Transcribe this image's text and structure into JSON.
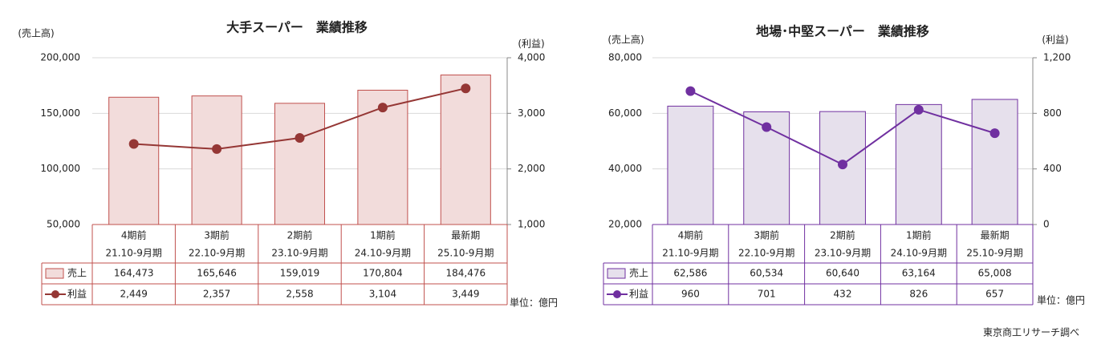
{
  "chart_data": [
    {
      "type": "bar_line",
      "title": "大手スーパー　業績推移",
      "ylabel": "(売上高)",
      "y2label": "(利益)",
      "categories": [
        "4期前",
        "3期前",
        "2期前",
        "1期前",
        "最新期"
      ],
      "periods": [
        "21.10-9月期",
        "22.10-9月期",
        "23.10-9月期",
        "24.10-9月期",
        "25.10-9月期"
      ],
      "series": [
        {
          "name": "売上",
          "type": "bar",
          "color": "#f2dcdb",
          "edgecolor": "#c0504d",
          "values": [
            164473,
            165646,
            159019,
            170804,
            184476
          ],
          "value_labels": [
            "164,473",
            "165,646",
            "159,019",
            "170,804",
            "184,476"
          ]
        },
        {
          "name": "利益",
          "type": "line",
          "axis": "y2",
          "color": "#953735",
          "values": [
            2449,
            2357,
            2558,
            3104,
            3449
          ],
          "value_labels": [
            "2,449",
            "2,357",
            "2,558",
            "3,104",
            "3,449"
          ]
        }
      ],
      "ylim": [
        50000,
        200000
      ],
      "yticks": [
        {
          "value": 50000,
          "label": "50,000"
        },
        {
          "value": 100000,
          "label": "100,000"
        },
        {
          "value": 150000,
          "label": "150,000"
        },
        {
          "value": 200000,
          "label": "200,000"
        }
      ],
      "y2lim": [
        1000,
        4000
      ],
      "y2ticks": [
        {
          "value": 1000,
          "label": "1,000"
        },
        {
          "value": 2000,
          "label": "2,000"
        },
        {
          "value": 3000,
          "label": "3,000"
        },
        {
          "value": 4000,
          "label": "4,000"
        }
      ],
      "grid": true,
      "unit": "単位：億円"
    },
    {
      "type": "bar_line",
      "title": "地場･中堅スーパー　業績推移",
      "ylabel": "(売上高)",
      "y2label": "(利益)",
      "categories": [
        "4期前",
        "3期前",
        "2期前",
        "1期前",
        "最新期"
      ],
      "periods": [
        "21.10-9月期",
        "22.10-9月期",
        "23.10-9月期",
        "24.10-9月期",
        "25.10-9月期"
      ],
      "series": [
        {
          "name": "売上",
          "type": "bar",
          "color": "#e6e0ec",
          "edgecolor": "#7030a0",
          "values": [
            62586,
            60534,
            60640,
            63164,
            65008
          ],
          "value_labels": [
            "62,586",
            "60,534",
            "60,640",
            "63,164",
            "65,008"
          ]
        },
        {
          "name": "利益",
          "type": "line",
          "axis": "y2",
          "color": "#7030a0",
          "values": [
            960,
            701,
            432,
            826,
            657
          ]
        }
      ],
      "ylim": [
        20000,
        80000
      ],
      "yticks": [
        {
          "value": 20000,
          "label": "20,000"
        },
        {
          "value": 40000,
          "label": "40,000"
        },
        {
          "value": 60000,
          "label": "60,000"
        },
        {
          "value": 80000,
          "label": "80,000"
        }
      ],
      "y2lim": [
        0,
        1200
      ],
      "y2ticks": [
        0,
        400,
        800,
        {
          "value": 1200,
          "label": "1,200"
        }
      ],
      "grid": true,
      "unit": "単位：億円"
    }
  ],
  "source": "東京商工リサーチ調べ"
}
